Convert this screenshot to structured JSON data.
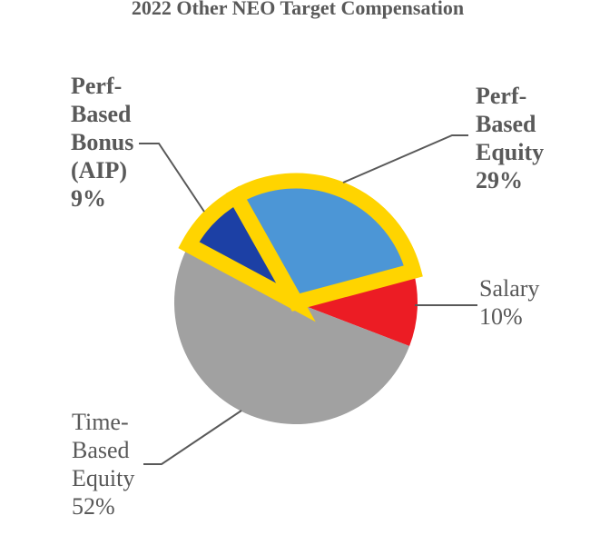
{
  "chart_data": {
    "type": "pie",
    "title": "2022 Other NEO Target Compensation",
    "start_angle_deg": 151.8,
    "direction": "clockwise",
    "legend_position": "none",
    "slices": [
      {
        "label": "Perf-Based Bonus (AIP)",
        "value": 9,
        "color": "#1C40A5",
        "highlight": true
      },
      {
        "label": "Perf-Based Equity",
        "value": 29,
        "color": "#4C96D6",
        "highlight": true
      },
      {
        "label": "Salary",
        "value": 10,
        "color": "#EC1C24",
        "highlight": false
      },
      {
        "label": "Time-Based Equity",
        "value": 52,
        "color": "#A1A1A1",
        "highlight": false
      }
    ],
    "labels": {
      "perf_bonus": "Perf-\nBased\nBonus\n(AIP)\n9%",
      "perf_equity": "Perf-\nBased\nEquity\n29%",
      "salary": "Salary\n10%",
      "time_equity": "Time-\nBased\nEquity\n52%"
    }
  },
  "colors": {
    "highlight_outline": "#FFD400",
    "text": "#595959",
    "leader_line": "#595959",
    "background": "#FFFFFF"
  }
}
